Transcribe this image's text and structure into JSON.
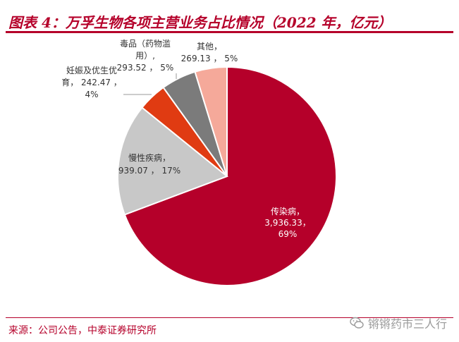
{
  "title": "图表 4：万孚生物各项主营业务占比情况（2022 年，亿元）",
  "source": "来源：公司公告，中泰证券研究所",
  "watermark": {
    "text": "锵锵药市三人行",
    "icon": "wechat-icon"
  },
  "colors": {
    "accent": "#b5002a",
    "slices": [
      "#b5002a",
      "#c8c8c8",
      "#e03b12",
      "#7b7b7b",
      "#f5a99a"
    ]
  },
  "chart_data": {
    "type": "pie",
    "title": "图表 4：万孚生物各项主营业务占比情况（2022 年，亿元）",
    "slices": [
      {
        "name": "传染病",
        "value": 3936.33,
        "percent": 69,
        "label_lines": [
          "传染病，",
          "3,936.33，",
          "69%"
        ]
      },
      {
        "name": "慢性疾病",
        "value": 939.07,
        "percent": 17,
        "label_lines": [
          "慢性疾病，",
          "939.07 ， 17%"
        ]
      },
      {
        "name": "妊娠及优生优育",
        "value": 242.47,
        "percent": 4,
        "label_lines": [
          "妊娠及优生优",
          "育， 242.47 ，",
          "4%"
        ]
      },
      {
        "name": "毒品（药物滥用）",
        "value": 293.52,
        "percent": 5,
        "label_lines": [
          "毒品（药物滥",
          "用）,",
          "293.52 ， 5%"
        ]
      },
      {
        "name": "其他",
        "value": 269.13,
        "percent": 5,
        "label_lines": [
          "其他，",
          "269.13 ， 5%"
        ]
      }
    ],
    "start_angle_deg": 0,
    "direction": "clockwise",
    "legend": "none"
  }
}
